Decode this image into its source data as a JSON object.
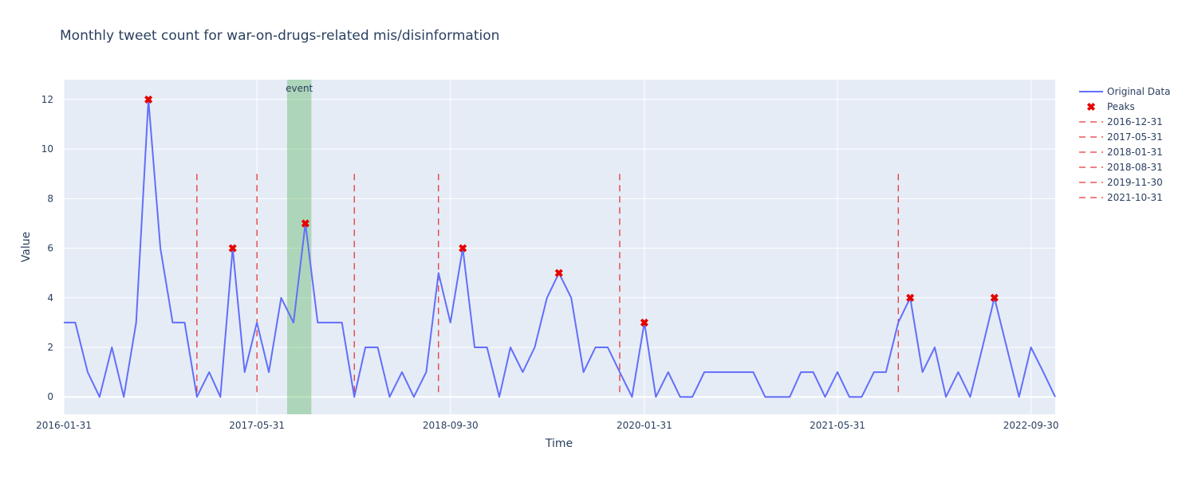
{
  "chart_data": {
    "type": "line",
    "title": "Monthly tweet count for war-on-drugs-related mis/disinformation",
    "xlabel": "Time",
    "ylabel": "Value",
    "x_start": "2016-01-31",
    "x_end": "2022-11-30",
    "ylim": [
      -0.7,
      12.8
    ],
    "grid": true,
    "legend_position": "right",
    "x_ticks": [
      "2016-01-31",
      "2017-05-31",
      "2018-09-30",
      "2020-01-31",
      "2021-05-31",
      "2022-09-30"
    ],
    "y_ticks": [
      0,
      2,
      4,
      6,
      8,
      10,
      12
    ],
    "series": [
      {
        "name": "Original Data",
        "color": "#636efa",
        "x": [
          "2016-01-31",
          "2016-02-29",
          "2016-03-31",
          "2016-04-30",
          "2016-05-31",
          "2016-06-30",
          "2016-07-31",
          "2016-08-31",
          "2016-09-30",
          "2016-10-31",
          "2016-11-30",
          "2016-12-31",
          "2017-01-31",
          "2017-02-28",
          "2017-03-31",
          "2017-04-30",
          "2017-05-31",
          "2017-06-30",
          "2017-07-31",
          "2017-08-31",
          "2017-09-30",
          "2017-10-31",
          "2017-11-30",
          "2017-12-31",
          "2018-01-31",
          "2018-02-28",
          "2018-03-31",
          "2018-04-30",
          "2018-05-31",
          "2018-06-30",
          "2018-07-31",
          "2018-08-31",
          "2018-09-30",
          "2018-10-31",
          "2018-11-30",
          "2018-12-31",
          "2019-01-31",
          "2019-02-28",
          "2019-03-31",
          "2019-04-30",
          "2019-05-31",
          "2019-06-30",
          "2019-07-31",
          "2019-08-31",
          "2019-09-30",
          "2019-10-31",
          "2019-11-30",
          "2019-12-31",
          "2020-01-31",
          "2020-02-29",
          "2020-03-31",
          "2020-04-30",
          "2020-05-31",
          "2020-06-30",
          "2020-07-31",
          "2020-08-31",
          "2020-09-30",
          "2020-10-31",
          "2020-11-30",
          "2020-12-31",
          "2021-01-31",
          "2021-02-28",
          "2021-03-31",
          "2021-04-30",
          "2021-05-31",
          "2021-06-30",
          "2021-07-31",
          "2021-08-31",
          "2021-09-30",
          "2021-10-31",
          "2021-11-30",
          "2021-12-31",
          "2022-01-31",
          "2022-02-28",
          "2022-03-31",
          "2022-04-30",
          "2022-05-31",
          "2022-06-30",
          "2022-07-31",
          "2022-08-31",
          "2022-09-30",
          "2022-10-31",
          "2022-11-30"
        ],
        "values": [
          3,
          3,
          1,
          0,
          2,
          0,
          3,
          12,
          6,
          3,
          3,
          0,
          1,
          0,
          6,
          1,
          3,
          1,
          4,
          3,
          7,
          3,
          3,
          3,
          0,
          2,
          2,
          0,
          1,
          0,
          1,
          5,
          3,
          6,
          2,
          2,
          0,
          2,
          1,
          2,
          4,
          5,
          4,
          1,
          2,
          2,
          1,
          0,
          3,
          0,
          1,
          0,
          0,
          1,
          1,
          1,
          1,
          1,
          0,
          0,
          0,
          1,
          1,
          0,
          1,
          0,
          0,
          1,
          1,
          3,
          4,
          1,
          2,
          0,
          1,
          0,
          2,
          4,
          2,
          0,
          2,
          1,
          0
        ]
      },
      {
        "name": "Peaks",
        "color": "#e60000",
        "x": [
          "2016-08-31",
          "2017-03-31",
          "2017-09-30",
          "2018-10-31",
          "2019-06-30",
          "2020-01-31",
          "2021-11-30",
          "2022-06-30"
        ],
        "values": [
          12,
          6,
          7,
          6,
          5,
          3,
          4,
          4
        ]
      }
    ],
    "vlines": [
      {
        "name": "2016-12-31",
        "x": "2016-12-31",
        "color": "#e60000"
      },
      {
        "name": "2017-05-31",
        "x": "2017-05-31",
        "color": "#e60000"
      },
      {
        "name": "2018-01-31",
        "x": "2018-01-31",
        "color": "#e60000"
      },
      {
        "name": "2018-08-31",
        "x": "2018-08-31",
        "color": "#e60000"
      },
      {
        "name": "2019-11-30",
        "x": "2019-11-30",
        "color": "#e60000"
      },
      {
        "name": "2021-10-31",
        "x": "2021-10-31",
        "color": "#e60000"
      }
    ],
    "event_band": {
      "label": "event",
      "x0": "2017-08-15",
      "x1": "2017-10-15",
      "color": "#2ca02c"
    }
  }
}
